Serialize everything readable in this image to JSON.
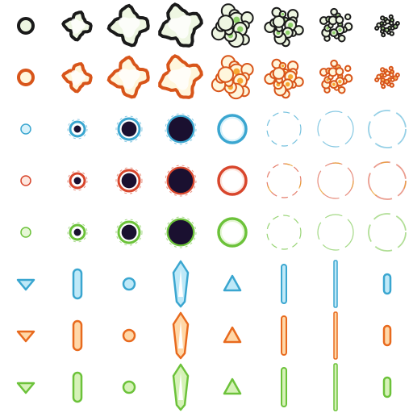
{
  "sheet": {
    "kind": "sprite-sheet",
    "columns": 8,
    "rows": 8,
    "background": "#ffffff"
  },
  "rows": [
    {
      "name": "smoke-explosion",
      "effect": "smoke",
      "palette": {
        "outline": "#1a1a1a",
        "fill": "#eef6e2",
        "accent": "#8fd16a"
      }
    },
    {
      "name": "fire-explosion",
      "effect": "fire",
      "palette": {
        "outline": "#d8551a",
        "fill": "#fff6dc",
        "accent": "#f7a733"
      }
    },
    {
      "name": "blue-shockwave",
      "effect": "ring",
      "palette": {
        "outline": "#3aa6d0",
        "fill": "#d8f2fb",
        "core": "#1a1030"
      }
    },
    {
      "name": "red-shockwave",
      "effect": "ring",
      "palette": {
        "outline": "#d8462c",
        "fill": "#fde7df",
        "core": "#1a1030",
        "accent": "#e8a030"
      }
    },
    {
      "name": "green-shockwave",
      "effect": "ring",
      "palette": {
        "outline": "#6cc23a",
        "fill": "#e6f7d6",
        "core": "#1a1030"
      }
    },
    {
      "name": "blue-projectiles",
      "effect": "bullet",
      "palette": {
        "outline": "#3aa6d0",
        "fill": "#bfe9f8"
      }
    },
    {
      "name": "orange-projectiles",
      "effect": "bullet",
      "palette": {
        "outline": "#e86a1e",
        "fill": "#ffd8a8",
        "accent": "#f7b53a"
      }
    },
    {
      "name": "green-projectiles",
      "effect": "bullet",
      "palette": {
        "outline": "#6cc23a",
        "fill": "#d6f2b8",
        "accent": "#b8e65a"
      }
    }
  ]
}
